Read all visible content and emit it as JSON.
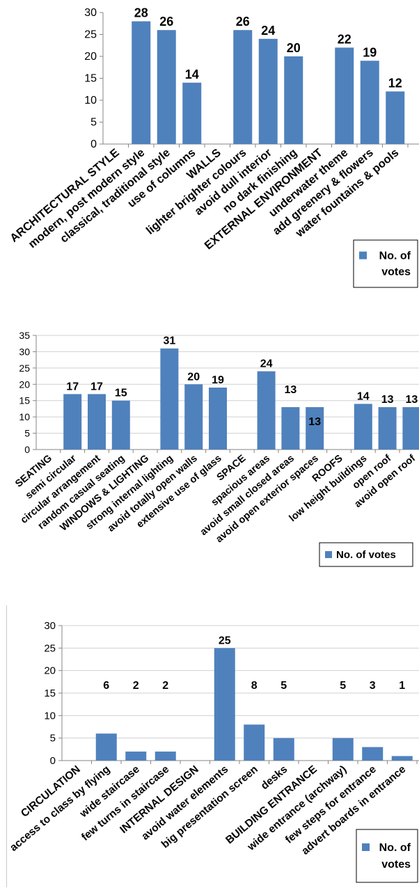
{
  "chart_data": [
    {
      "type": "bar",
      "categories": [
        "ARCHITECTURAL STYLE",
        "modern, post modern style",
        "classical, traditional style",
        "use of columns",
        "WALLS",
        "lighter brighter colours",
        "avoid dull interior",
        "no dark finishing",
        "EXTERNAL ENVIRONMENT",
        "underwater theme",
        "add greenery & flowers",
        "water fountains & pools"
      ],
      "values": [
        null,
        28,
        26,
        14,
        null,
        26,
        24,
        20,
        null,
        22,
        19,
        12
      ],
      "data_labels": [
        "",
        "28",
        "26",
        "14",
        "",
        "26",
        "24",
        "20",
        "",
        "22",
        "19",
        "12"
      ],
      "series": [
        {
          "name": "No. of votes",
          "color": "#4f81bd"
        }
      ],
      "legend": {
        "text": "No. of votes",
        "position": "bottom-right",
        "wrapped": [
          "No. of",
          "votes"
        ]
      },
      "ylim": [
        0,
        30
      ],
      "yticks": [
        "0",
        "5",
        "10",
        "15",
        "20",
        "25",
        "30"
      ],
      "grid": false
    },
    {
      "type": "bar",
      "categories": [
        "SEATING",
        "semi circular",
        "circular arrangement",
        "random casual seating",
        "WINDOWS & LIGHTING",
        "strong internal lighting",
        "avoid totally open walls",
        "extensive use of glass",
        "SPACE",
        "spacious areas",
        "avoid small closed areas",
        "avoid open exterior spaces",
        "ROOFS",
        "low height buildings",
        "open roof",
        "avoid open roof"
      ],
      "values": [
        null,
        17,
        17,
        15,
        null,
        31,
        20,
        19,
        null,
        24,
        13,
        13,
        null,
        14,
        13,
        13
      ],
      "data_labels": [
        "",
        "17",
        "17",
        "15",
        "",
        "31",
        "20",
        "19",
        "",
        "24",
        "13",
        "13",
        "",
        "14",
        "13",
        "13"
      ],
      "series": [
        {
          "name": "No. of votes",
          "color": "#4f81bd"
        }
      ],
      "legend": {
        "text": "No. of votes",
        "position": "bottom-right",
        "wrapped": [
          "No. of votes"
        ]
      },
      "ylim": [
        0,
        35
      ],
      "yticks": [
        "0",
        "5",
        "10",
        "15",
        "20",
        "25",
        "30",
        "35"
      ],
      "grid": true
    },
    {
      "type": "bar",
      "categories": [
        "CIRCULATION",
        "access to class by flying",
        "wide staircase",
        "few turns in staircase",
        "INTERNAL DESIGN",
        "avoid water elements",
        "big presentation screen",
        "desks",
        "BUILDING ENTRANCE",
        "wide entrance (archway)",
        "few steps for entrance",
        "advert boards in entrance"
      ],
      "values": [
        null,
        6,
        2,
        2,
        null,
        25,
        8,
        5,
        null,
        5,
        3,
        1
      ],
      "data_labels": [
        "",
        "6",
        "2",
        "2",
        "",
        "25",
        "8",
        "5",
        "",
        "5",
        "3",
        "1"
      ],
      "series": [
        {
          "name": "No. of votes",
          "color": "#4f81bd"
        }
      ],
      "legend": {
        "text": "No. of votes",
        "position": "bottom-right",
        "wrapped": [
          "No. of",
          "votes"
        ]
      },
      "ylim": [
        0,
        30
      ],
      "yticks": [
        "0",
        "5",
        "10",
        "15",
        "20",
        "25",
        "30"
      ],
      "grid": true
    }
  ]
}
